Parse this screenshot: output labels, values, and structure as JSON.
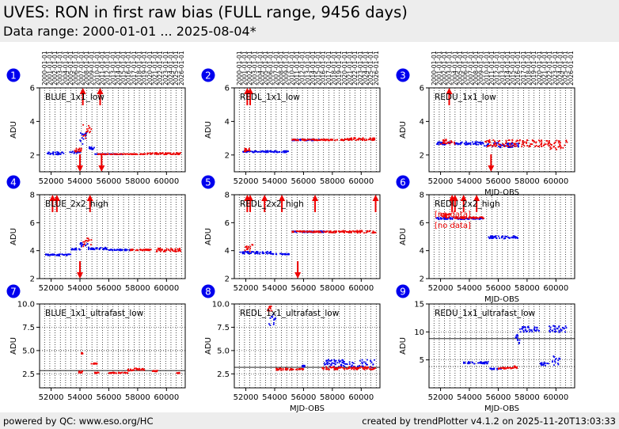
{
  "header": {
    "title": "UVES: RON in first raw bias (FULL range, 9456 days)",
    "subtitle": "Data range: 2000-01-01 ... 2025-08-04*"
  },
  "footer": {
    "left": "powered by QC: www.eso.org/HC",
    "right": "created by trendPlotter v4.1.2 on 2025-11-20T13:03:33"
  },
  "colors": {
    "blue": "#0000ee",
    "red": "#ee0000",
    "badge": "#0000ee"
  },
  "year_ticks": [
    "2000-01-01",
    "2001-01-01",
    "2002-01-01",
    "2003-01-01",
    "2004-01-01",
    "2005-01-01",
    "2006-01-01",
    "2007-01-01",
    "2008-01-01",
    "2009-01-01",
    "2010-01-01",
    "2011-01-01",
    "2012-01-01",
    "2013-01-01",
    "2014-01-01",
    "2015-01-01",
    "2016-01-01",
    "2017-01-01",
    "2018-01-01",
    "2019-01-01",
    "2020-01-01",
    "2021-01-01",
    "2022-01-01",
    "2023-01-01",
    "2024-01-01",
    "2025-01-01",
    "2026-01-01"
  ],
  "chart_data": [
    {
      "id": 1,
      "type": "scatter",
      "label": "BLUE_1x1_low",
      "ylabel": "ADU",
      "xlabel": "",
      "xlim": [
        51200,
        61300
      ],
      "ylim": [
        1,
        6
      ],
      "yticks": [
        2,
        4,
        6
      ],
      "xticks": [
        52000,
        54000,
        56000,
        58000,
        60000
      ],
      "series": [
        {
          "color": "blue",
          "segments": [
            [
              51600,
              52900,
              2.1,
              0.08
            ],
            [
              53300,
              54000,
              2.15,
              0.1
            ],
            [
              54000,
              54600,
              3.0,
              0.35
            ],
            [
              54600,
              55000,
              2.4,
              0.1
            ],
            [
              55000,
              57000,
              2.05,
              0.02
            ]
          ]
        },
        {
          "color": "red",
          "segments": [
            [
              53600,
              54200,
              2.3,
              0.12
            ],
            [
              54200,
              54800,
              3.4,
              0.4
            ],
            [
              55200,
              58500,
              2.05,
              0.02
            ],
            [
              58500,
              61000,
              2.08,
              0.05
            ]
          ]
        }
      ],
      "arrows_up": [
        54200,
        55400
      ],
      "arrows_down": [
        54000,
        55500
      ],
      "no_data": []
    },
    {
      "id": 2,
      "type": "scatter",
      "label": "REDL_1x1_low",
      "ylabel": "ADU",
      "xlabel": "",
      "xlim": [
        51200,
        61300
      ],
      "ylim": [
        1,
        6
      ],
      "yticks": [
        2,
        4,
        6
      ],
      "xticks": [
        52000,
        54000,
        56000,
        58000,
        60000
      ],
      "series": [
        {
          "color": "blue",
          "segments": [
            [
              51800,
              55000,
              2.2,
              0.05
            ],
            [
              55200,
              57200,
              2.9,
              0.04
            ]
          ]
        },
        {
          "color": "red",
          "segments": [
            [
              51900,
              52400,
              2.3,
              0.1
            ],
            [
              55200,
              59000,
              2.9,
              0.04
            ],
            [
              59000,
              61000,
              2.95,
              0.08
            ]
          ]
        }
      ],
      "arrows_up": [
        52100,
        52300
      ],
      "arrows_down": [],
      "no_data": []
    },
    {
      "id": 3,
      "type": "scatter",
      "label": "REDU_1x1_low",
      "ylabel": "ADU",
      "xlabel": "MJD-OBS",
      "xlim": [
        51200,
        61300
      ],
      "ylim": [
        1,
        6
      ],
      "yticks": [
        2,
        4,
        6
      ],
      "xticks": [
        52000,
        54000,
        56000,
        58000,
        60000
      ],
      "series": [
        {
          "color": "blue",
          "segments": [
            [
              51700,
              55000,
              2.7,
              0.08
            ],
            [
              55000,
              57400,
              2.6,
              0.15
            ]
          ]
        },
        {
          "color": "red",
          "segments": [
            [
              52000,
              53000,
              2.8,
              0.15
            ],
            [
              55000,
              57400,
              2.7,
              0.2
            ],
            [
              57400,
              59600,
              2.7,
              0.2
            ],
            [
              59600,
              60800,
              2.6,
              0.3
            ]
          ]
        }
      ],
      "arrows_up": [
        52600
      ],
      "arrows_down": [
        55500
      ],
      "no_data": []
    },
    {
      "id": 4,
      "type": "scatter",
      "label": "BLUE_2x2_high",
      "ylabel": "ADU",
      "xlabel": "",
      "xlim": [
        51200,
        61300
      ],
      "ylim": [
        2,
        8
      ],
      "yticks": [
        2,
        4,
        6,
        8
      ],
      "xticks": [
        52000,
        54000,
        56000,
        58000,
        60000
      ],
      "series": [
        {
          "color": "blue",
          "segments": [
            [
              51600,
              53400,
              3.7,
              0.06
            ],
            [
              53400,
              54000,
              4.1,
              0.06
            ],
            [
              54000,
              54600,
              4.4,
              0.2
            ],
            [
              54600,
              56000,
              4.15,
              0.08
            ],
            [
              56000,
              57500,
              4.05,
              0.04
            ]
          ]
        },
        {
          "color": "red",
          "segments": [
            [
              54200,
              54800,
              4.6,
              0.3
            ],
            [
              57500,
              59000,
              4.05,
              0.04
            ],
            [
              59200,
              61000,
              4.05,
              0.12
            ]
          ]
        }
      ],
      "arrows_up": [
        52100,
        52400,
        54700
      ],
      "arrows_down": [
        54000
      ],
      "no_data": []
    },
    {
      "id": 5,
      "type": "scatter",
      "label": "REDL_2x2_high",
      "ylabel": "ADU",
      "xlabel": "",
      "xlim": [
        51200,
        61300
      ],
      "ylim": [
        2,
        8
      ],
      "yticks": [
        2,
        4,
        6,
        8
      ],
      "xticks": [
        52000,
        54000,
        56000,
        58000,
        60000
      ],
      "series": [
        {
          "color": "blue",
          "segments": [
            [
              51600,
              53800,
              3.85,
              0.08
            ],
            [
              53800,
              55000,
              3.75,
              0.04
            ],
            [
              55200,
              57500,
              5.35,
              0.05
            ]
          ]
        },
        {
          "color": "red",
          "segments": [
            [
              51900,
              52500,
              4.2,
              0.25
            ],
            [
              55200,
              58000,
              5.35,
              0.05
            ],
            [
              58000,
              61000,
              5.35,
              0.08
            ]
          ]
        }
      ],
      "arrows_up": [
        52100,
        52300,
        53300,
        54500,
        56800,
        61000
      ],
      "arrows_down": [
        55600
      ],
      "no_data": []
    },
    {
      "id": 6,
      "type": "scatter",
      "label": "REDU_2x2_high",
      "ylabel": "ADU",
      "xlabel": "MJD-OBS",
      "xlim": [
        51200,
        61300
      ],
      "ylim": [
        2,
        8
      ],
      "yticks": [
        2,
        4,
        6,
        8
      ],
      "xticks": [
        52000,
        54000,
        56000,
        58000,
        60000
      ],
      "series": [
        {
          "color": "blue",
          "segments": [
            [
              51700,
              55000,
              6.3,
              0.06
            ],
            [
              55200,
              57400,
              4.95,
              0.1
            ]
          ]
        },
        {
          "color": "red",
          "segments": [
            [
              52000,
              52900,
              6.5,
              0.15
            ],
            [
              52900,
              55000,
              6.35,
              0.06
            ]
          ]
        }
      ],
      "arrows_up": [
        52800,
        53000,
        53600,
        54500
      ],
      "arrows_down": [],
      "no_data": [
        "[no data]",
        "[no data]"
      ]
    },
    {
      "id": 7,
      "type": "scatter",
      "label": "BLUE_1x1_ultrafast_low",
      "ylabel": "ADU",
      "xlabel": "",
      "xlim": [
        51200,
        61300
      ],
      "ylim": [
        1,
        10
      ],
      "yticks": [
        2.5,
        5.0,
        7.5,
        10.0
      ],
      "xticks": [
        52000,
        54000,
        56000,
        58000,
        60000
      ],
      "hlines": [
        2.85,
        5.0
      ],
      "series": [
        {
          "color": "red",
          "segments": [
            [
              53900,
              54200,
              2.7,
              0.1
            ],
            [
              54100,
              54200,
              4.7,
              0.05
            ],
            [
              54700,
              55200,
              3.6,
              0.05
            ],
            [
              55000,
              55300,
              2.6,
              0.05
            ],
            [
              56000,
              57300,
              2.6,
              0.05
            ],
            [
              57300,
              57700,
              2.9,
              0.1
            ],
            [
              57700,
              58500,
              3.0,
              0.12
            ],
            [
              59000,
              59400,
              2.8,
              0.05
            ],
            [
              60700,
              60900,
              2.6,
              0.05
            ]
          ]
        }
      ],
      "arrows_up": [],
      "arrows_down": [],
      "no_data": []
    },
    {
      "id": 8,
      "type": "scatter",
      "label": "REDL_1x1_ultrafast_low",
      "ylabel": "ADU",
      "xlabel": "MJD-OBS",
      "xlim": [
        51200,
        61300
      ],
      "ylim": [
        1,
        10
      ],
      "yticks": [
        2.5,
        5.0,
        7.5,
        10.0
      ],
      "xticks": [
        52000,
        54000,
        56000,
        58000,
        60000
      ],
      "hlines": [
        3.2
      ],
      "series": [
        {
          "color": "blue",
          "segments": [
            [
              53600,
              54100,
              8.2,
              0.9
            ],
            [
              55900,
              56100,
              3.3,
              0.1
            ],
            [
              57400,
              61000,
              3.6,
              0.45
            ]
          ]
        },
        {
          "color": "red",
          "segments": [
            [
              53500,
              53800,
              9.5,
              0.3
            ],
            [
              54100,
              55200,
              3.0,
              0.1
            ],
            [
              55200,
              56000,
              3.0,
              0.05
            ],
            [
              57300,
              61000,
              3.1,
              0.15
            ]
          ]
        }
      ],
      "arrows_up": [],
      "arrows_down": [],
      "no_data": []
    },
    {
      "id": 9,
      "type": "scatter",
      "label": "REDU_1x1_ultrafast_low",
      "ylabel": "ADU",
      "xlabel": "MJD-OBS",
      "xlim": [
        51200,
        61300
      ],
      "ylim": [
        0,
        15
      ],
      "yticks": [
        5,
        10,
        15
      ],
      "xticks": [
        52000,
        54000,
        56000,
        58000,
        60000
      ],
      "hlines": [
        8.8,
        3.8
      ],
      "series": [
        {
          "color": "blue",
          "segments": [
            [
              53600,
              55300,
              4.5,
              0.2
            ],
            [
              55400,
              56200,
              3.4,
              0.1
            ],
            [
              57200,
              57500,
              9.0,
              1.2
            ],
            [
              57500,
              58900,
              10.5,
              0.5
            ],
            [
              58900,
              59500,
              4.3,
              0.3
            ],
            [
              59500,
              60800,
              10.5,
              0.6
            ],
            [
              59700,
              60300,
              5.0,
              1.0
            ]
          ]
        },
        {
          "color": "red",
          "segments": [
            [
              56000,
              57000,
              3.5,
              0.15
            ],
            [
              57000,
              57300,
              3.7,
              0.2
            ]
          ]
        }
      ],
      "arrows_up": [],
      "arrows_down": [],
      "no_data": []
    }
  ]
}
